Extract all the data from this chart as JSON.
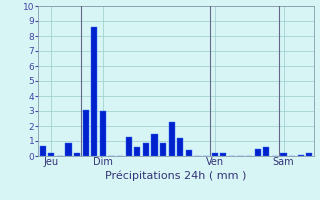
{
  "title": "",
  "xlabel": "Précipitations 24h ( mm )",
  "ylabel": "",
  "background_color": "#d8f5f5",
  "bar_color": "#0022cc",
  "bar_edge_color": "#3366ff",
  "grid_color": "#99cccc",
  "vline_color": "#666688",
  "ylim": [
    0,
    10
  ],
  "yticks": [
    0,
    1,
    2,
    3,
    4,
    5,
    6,
    7,
    8,
    9,
    10
  ],
  "day_labels": [
    "Jeu",
    "Dim",
    "Ven",
    "Sam"
  ],
  "day_positions": [
    1,
    7,
    20,
    28
  ],
  "values": [
    0.7,
    0.2,
    0.0,
    0.9,
    0.2,
    3.1,
    8.6,
    3.0,
    0.0,
    0.0,
    1.3,
    0.6,
    0.9,
    1.5,
    0.9,
    2.3,
    1.2,
    0.4,
    0.0,
    0.0,
    0.2,
    0.2,
    0.0,
    0.0,
    0.0,
    0.5,
    0.6,
    0.0,
    0.2,
    0.0,
    0.1,
    0.2
  ],
  "vline_positions": [
    4.5,
    19.5,
    27.5
  ],
  "xlabel_fontsize": 8,
  "ytick_fontsize": 6.5,
  "xtick_fontsize": 7
}
